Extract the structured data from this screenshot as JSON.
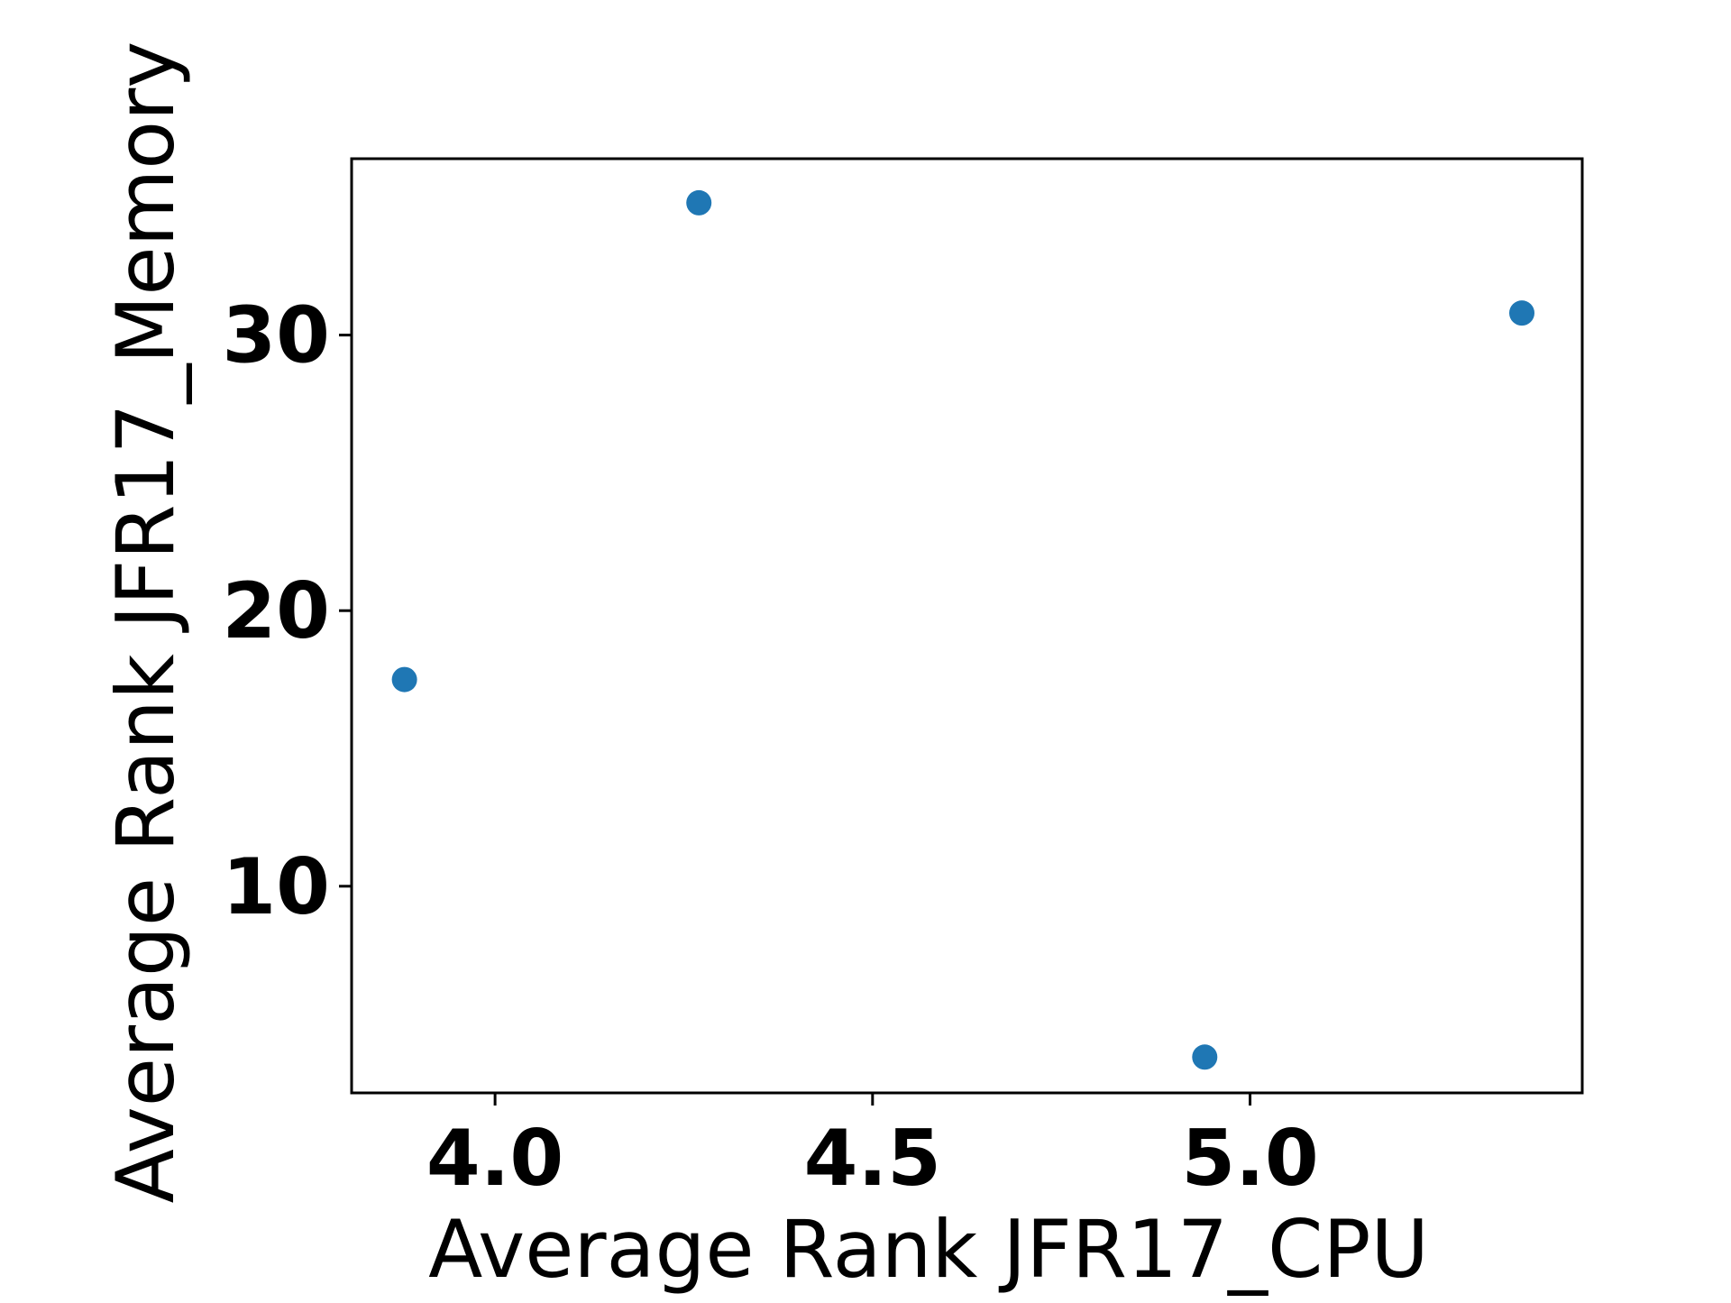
{
  "chart_data": {
    "type": "scatter",
    "title": "",
    "xlabel": "Average Rank JFR17_CPU",
    "ylabel": "Average Rank JFR17_Memory",
    "xlim": [
      3.81,
      5.44
    ],
    "ylim": [
      2.5,
      36.4
    ],
    "xticks": [
      4.0,
      4.5,
      5.0
    ],
    "xtick_labels": [
      "4.0",
      "4.5",
      "5.0"
    ],
    "yticks": [
      10,
      20,
      30
    ],
    "ytick_labels": [
      "10",
      "20",
      "30"
    ],
    "grid": false,
    "legend": false,
    "marker_color": "#1f77b4",
    "points": [
      {
        "x": 3.88,
        "y": 17.5
      },
      {
        "x": 4.27,
        "y": 34.8
      },
      {
        "x": 4.94,
        "y": 3.8
      },
      {
        "x": 5.36,
        "y": 30.8
      }
    ]
  }
}
